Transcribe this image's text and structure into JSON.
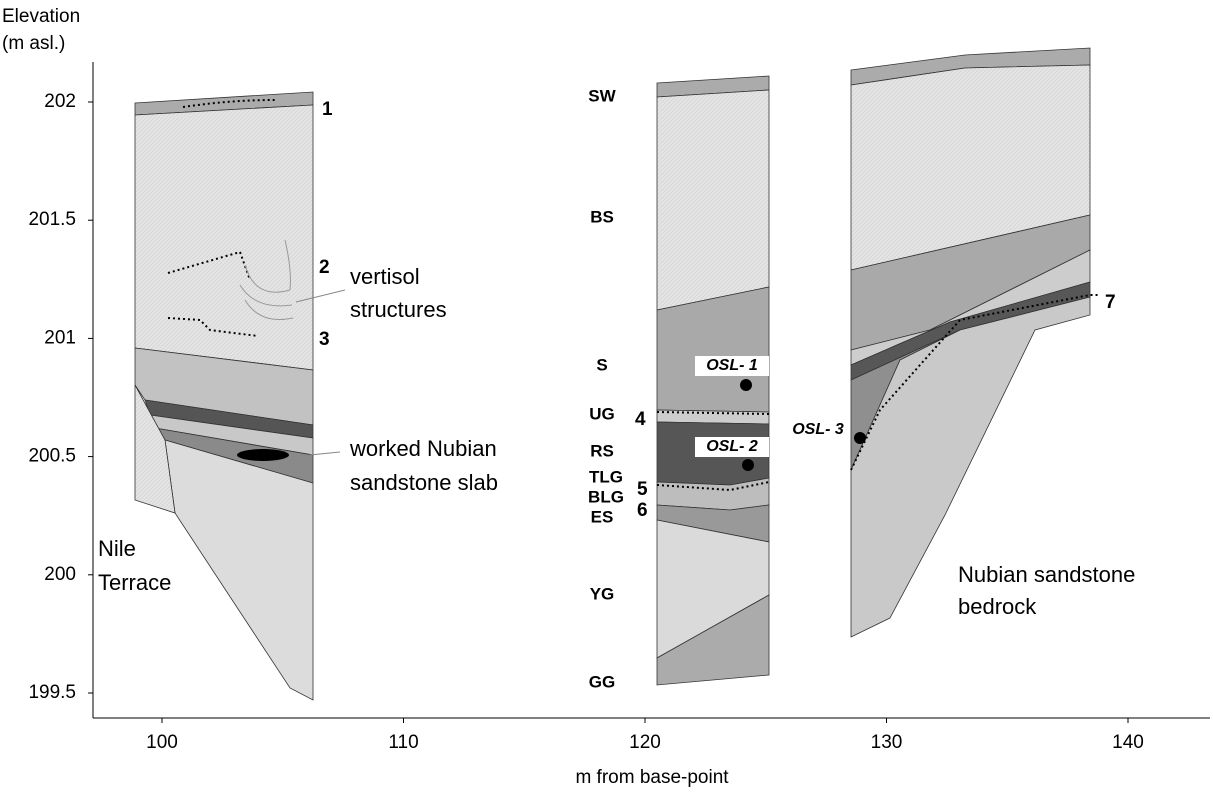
{
  "axes": {
    "y_title": [
      "Elevation",
      "(m asl.)"
    ],
    "yticks": [
      202,
      201.5,
      201,
      200.5,
      200,
      199.5
    ],
    "xticks": [
      100,
      110,
      120,
      130,
      140
    ],
    "x_title": "m from base-point"
  },
  "layer_codes": [
    "SW",
    "BS",
    "S",
    "UG",
    "RS",
    "TLG",
    "BLG",
    "ES",
    "YG",
    "GG"
  ],
  "markers": [
    "1",
    "2",
    "3",
    "4",
    "5",
    "6",
    "7"
  ],
  "samples": [
    "OSL- 1",
    "OSL- 2",
    "OSL- 3"
  ],
  "annotations": [
    [
      "vertisol",
      "structures"
    ],
    [
      "worked Nubian",
      "sandstone slab"
    ],
    [
      "Nile",
      "Terrace"
    ],
    [
      "Nubian sandstone",
      "bedrock"
    ]
  ]
}
